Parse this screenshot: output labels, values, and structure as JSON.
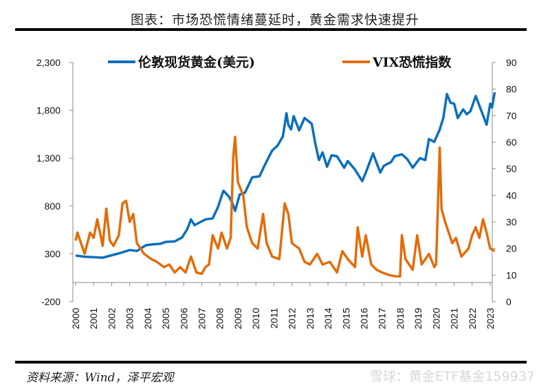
{
  "title": "图表：市场恐慌情绪蔓延时，黄金需求快速提升",
  "source": "资料来源：Wind，泽平宏观",
  "watermark": "雪球：黄金ETF基金159937",
  "chart_data": {
    "type": "line",
    "x_ticks": [
      "2000",
      "2001",
      "2002",
      "2003",
      "2004",
      "2005",
      "2006",
      "2007",
      "2008",
      "2009",
      "2010",
      "2011",
      "2012",
      "2013",
      "2014",
      "2015",
      "2016",
      "2017",
      "2018",
      "2019",
      "2020",
      "2021",
      "2022",
      "2023"
    ],
    "y_left": {
      "ticks": [
        "2,300",
        "1,800",
        "1,300",
        "800",
        "300",
        "-200"
      ],
      "range": [
        -200,
        2300
      ]
    },
    "y_right": {
      "ticks": [
        "90",
        "80",
        "70",
        "60",
        "50",
        "40",
        "30",
        "20",
        "10",
        "0"
      ],
      "range": [
        0,
        90
      ]
    },
    "legend_placement": "top",
    "grid": false,
    "series": [
      {
        "name": "伦敦现货黄金(美元)",
        "axis": "left",
        "color": "#0a6ebd",
        "points": [
          [
            2000,
            282
          ],
          [
            2000.5,
            270
          ],
          [
            2001,
            265
          ],
          [
            2001.5,
            260
          ],
          [
            2002,
            285
          ],
          [
            2002.5,
            310
          ],
          [
            2003,
            340
          ],
          [
            2003.4,
            330
          ],
          [
            2003.9,
            390
          ],
          [
            2004.3,
            400
          ],
          [
            2004.7,
            405
          ],
          [
            2005,
            425
          ],
          [
            2005.5,
            430
          ],
          [
            2005.9,
            470
          ],
          [
            2006.2,
            560
          ],
          [
            2006.4,
            660
          ],
          [
            2006.6,
            600
          ],
          [
            2006.9,
            630
          ],
          [
            2007.2,
            660
          ],
          [
            2007.6,
            670
          ],
          [
            2007.9,
            790
          ],
          [
            2008.2,
            960
          ],
          [
            2008.5,
            900
          ],
          [
            2008.7,
            830
          ],
          [
            2008.85,
            750
          ],
          [
            2009.1,
            920
          ],
          [
            2009.4,
            940
          ],
          [
            2009.8,
            1100
          ],
          [
            2010.2,
            1110
          ],
          [
            2010.5,
            1230
          ],
          [
            2010.9,
            1380
          ],
          [
            2011.2,
            1430
          ],
          [
            2011.5,
            1530
          ],
          [
            2011.7,
            1770
          ],
          [
            2011.8,
            1650
          ],
          [
            2011.95,
            1600
          ],
          [
            2012.1,
            1740
          ],
          [
            2012.4,
            1590
          ],
          [
            2012.7,
            1720
          ],
          [
            2012.9,
            1690
          ],
          [
            2013.1,
            1660
          ],
          [
            2013.3,
            1450
          ],
          [
            2013.5,
            1280
          ],
          [
            2013.7,
            1360
          ],
          [
            2013.95,
            1210
          ],
          [
            2014.2,
            1330
          ],
          [
            2014.5,
            1320
          ],
          [
            2014.9,
            1200
          ],
          [
            2015.1,
            1270
          ],
          [
            2015.5,
            1180
          ],
          [
            2015.9,
            1060
          ],
          [
            2016.1,
            1150
          ],
          [
            2016.5,
            1350
          ],
          [
            2016.9,
            1150
          ],
          [
            2017.1,
            1220
          ],
          [
            2017.5,
            1260
          ],
          [
            2017.7,
            1320
          ],
          [
            2018.1,
            1340
          ],
          [
            2018.4,
            1290
          ],
          [
            2018.7,
            1200
          ],
          [
            2019.1,
            1300
          ],
          [
            2019.4,
            1280
          ],
          [
            2019.6,
            1500
          ],
          [
            2019.9,
            1470
          ],
          [
            2020.2,
            1600
          ],
          [
            2020.4,
            1720
          ],
          [
            2020.6,
            1970
          ],
          [
            2020.8,
            1880
          ],
          [
            2021.0,
            1870
          ],
          [
            2021.2,
            1720
          ],
          [
            2021.5,
            1810
          ],
          [
            2021.7,
            1760
          ],
          [
            2021.9,
            1790
          ],
          [
            2022.2,
            1950
          ],
          [
            2022.5,
            1800
          ],
          [
            2022.8,
            1650
          ],
          [
            2023.0,
            1870
          ],
          [
            2023.1,
            1830
          ],
          [
            2023.25,
            1990
          ]
        ]
      },
      {
        "name": "VIX恐慌指数",
        "axis": "right",
        "color": "#e36c0a",
        "points": [
          [
            2000,
            23
          ],
          [
            2000.1,
            26
          ],
          [
            2000.3,
            22
          ],
          [
            2000.5,
            18
          ],
          [
            2000.8,
            26
          ],
          [
            2001.0,
            24
          ],
          [
            2001.2,
            31
          ],
          [
            2001.5,
            21
          ],
          [
            2001.7,
            35
          ],
          [
            2001.9,
            23
          ],
          [
            2002.1,
            21
          ],
          [
            2002.4,
            25
          ],
          [
            2002.6,
            37
          ],
          [
            2002.8,
            38
          ],
          [
            2003.0,
            30
          ],
          [
            2003.2,
            33
          ],
          [
            2003.4,
            22
          ],
          [
            2003.8,
            18
          ],
          [
            2004.2,
            16
          ],
          [
            2004.5,
            15
          ],
          [
            2004.9,
            13
          ],
          [
            2005.2,
            14
          ],
          [
            2005.5,
            11
          ],
          [
            2005.8,
            13
          ],
          [
            2006.1,
            11
          ],
          [
            2006.4,
            17
          ],
          [
            2006.7,
            11
          ],
          [
            2007.0,
            10.5
          ],
          [
            2007.2,
            13
          ],
          [
            2007.4,
            14
          ],
          [
            2007.6,
            25
          ],
          [
            2007.9,
            20
          ],
          [
            2008.1,
            26
          ],
          [
            2008.4,
            20
          ],
          [
            2008.6,
            24
          ],
          [
            2008.75,
            55
          ],
          [
            2008.85,
            62
          ],
          [
            2009.0,
            45
          ],
          [
            2009.3,
            40
          ],
          [
            2009.5,
            28
          ],
          [
            2009.8,
            22
          ],
          [
            2010.1,
            20
          ],
          [
            2010.4,
            33
          ],
          [
            2010.6,
            22
          ],
          [
            2010.9,
            17
          ],
          [
            2011.3,
            16
          ],
          [
            2011.6,
            37
          ],
          [
            2011.8,
            33
          ],
          [
            2012.0,
            22
          ],
          [
            2012.4,
            20
          ],
          [
            2012.7,
            15
          ],
          [
            2013.0,
            14
          ],
          [
            2013.4,
            18
          ],
          [
            2013.7,
            14
          ],
          [
            2014.1,
            15
          ],
          [
            2014.5,
            11
          ],
          [
            2014.8,
            19
          ],
          [
            2015.1,
            16
          ],
          [
            2015.5,
            13
          ],
          [
            2015.65,
            28
          ],
          [
            2015.9,
            17
          ],
          [
            2016.1,
            25
          ],
          [
            2016.4,
            14
          ],
          [
            2016.7,
            12
          ],
          [
            2017.0,
            11
          ],
          [
            2017.4,
            10
          ],
          [
            2017.8,
            9.5
          ],
          [
            2018.0,
            9.5
          ],
          [
            2018.1,
            25
          ],
          [
            2018.3,
            16
          ],
          [
            2018.7,
            12
          ],
          [
            2018.95,
            25
          ],
          [
            2019.2,
            14
          ],
          [
            2019.6,
            18
          ],
          [
            2019.9,
            13
          ],
          [
            2020.0,
            14
          ],
          [
            2020.2,
            58
          ],
          [
            2020.3,
            35
          ],
          [
            2020.5,
            30
          ],
          [
            2020.7,
            26
          ],
          [
            2020.9,
            22
          ],
          [
            2021.1,
            24
          ],
          [
            2021.4,
            17
          ],
          [
            2021.8,
            20
          ],
          [
            2022.0,
            25
          ],
          [
            2022.2,
            28
          ],
          [
            2022.4,
            24
          ],
          [
            2022.6,
            31
          ],
          [
            2022.8,
            26
          ],
          [
            2023.0,
            20
          ],
          [
            2023.25,
            19
          ]
        ]
      }
    ]
  }
}
